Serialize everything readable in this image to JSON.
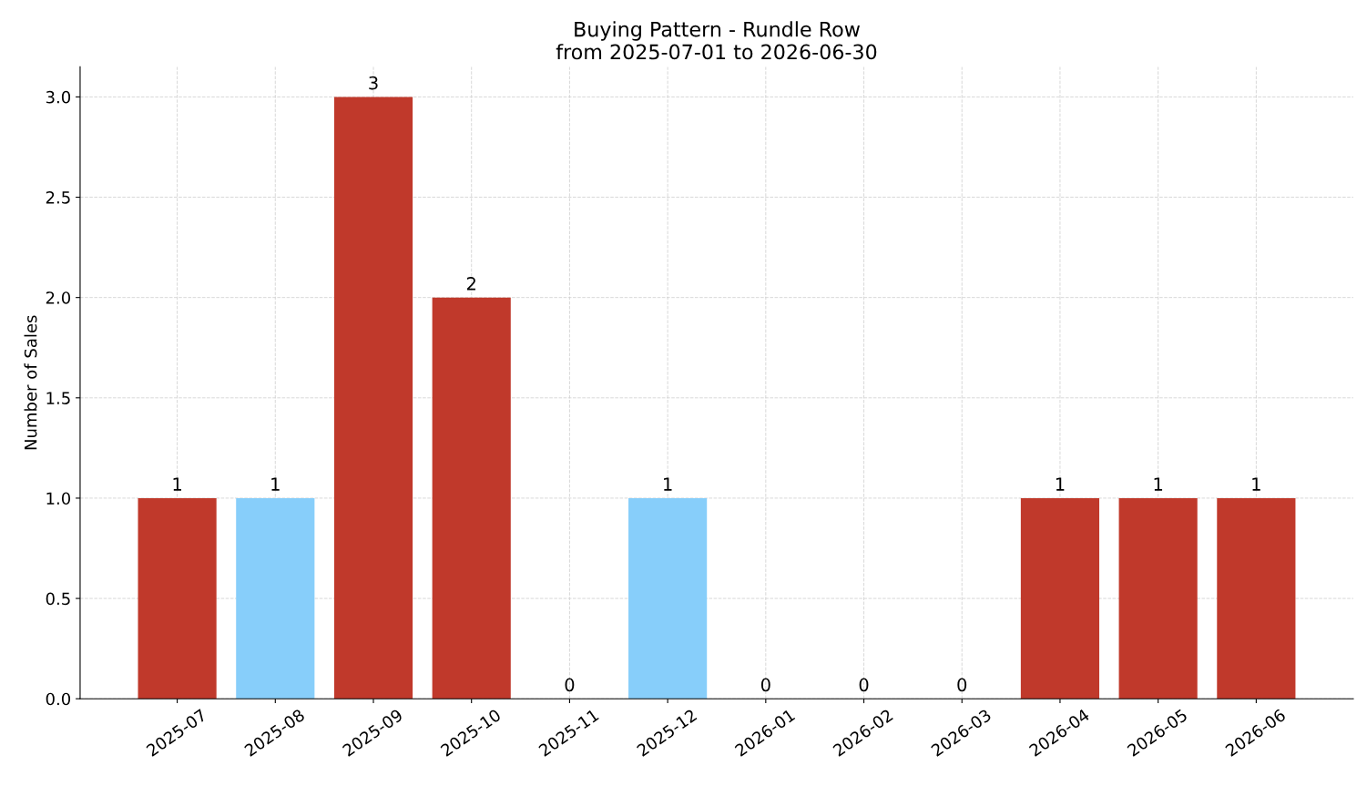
{
  "chart_data": {
    "type": "bar",
    "title": "Buying Pattern - Rundle Row\nfrom 2025-07-01 to 2026-06-30",
    "ylabel": "Number of Sales",
    "categories": [
      "2025-07",
      "2025-08",
      "2025-09",
      "2025-10",
      "2025-11",
      "2025-12",
      "2026-01",
      "2026-02",
      "2026-03",
      "2026-04",
      "2026-05",
      "2026-06"
    ],
    "values": [
      1,
      1,
      3,
      2,
      0,
      1,
      0,
      0,
      0,
      1,
      1,
      1
    ],
    "colors": [
      "#c0392b",
      "#87cefa",
      "#c0392b",
      "#c0392b",
      "#c0392b",
      "#87cefa",
      "#c0392b",
      "#c0392b",
      "#c0392b",
      "#c0392b",
      "#c0392b",
      "#c0392b"
    ],
    "ylim": [
      0,
      3.15
    ],
    "yticks": [
      {
        "value": 0,
        "label": "0.0"
      },
      {
        "value": 0.5,
        "label": "0.5"
      },
      {
        "value": 1,
        "label": "1.0"
      },
      {
        "value": 1.5,
        "label": "1.5"
      },
      {
        "value": 2,
        "label": "2.0"
      },
      {
        "value": 2.5,
        "label": "2.5"
      },
      {
        "value": 3,
        "label": "3.0"
      }
    ],
    "grid": true,
    "data_labels": true
  }
}
